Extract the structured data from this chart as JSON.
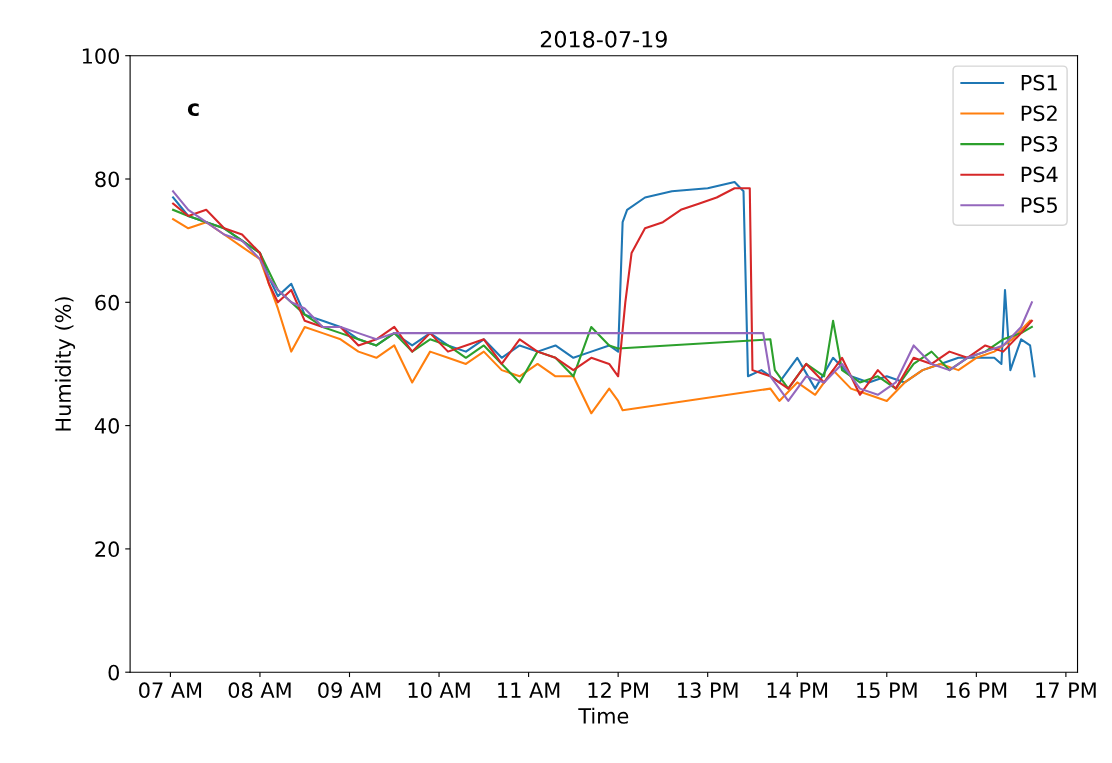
{
  "chart_data": {
    "type": "line",
    "title": "2018-07-19",
    "xlabel": "Time",
    "ylabel": "Humidity (%)",
    "annotations": [
      "c"
    ],
    "xlim": [
      6.55,
      17.13
    ],
    "ylim": [
      0,
      100
    ],
    "xticks": [
      {
        "value": 7,
        "label": "07 AM"
      },
      {
        "value": 8,
        "label": "08 AM"
      },
      {
        "value": 9,
        "label": "09 AM"
      },
      {
        "value": 10,
        "label": "10 AM"
      },
      {
        "value": 11,
        "label": "11 AM"
      },
      {
        "value": 12,
        "label": "12 PM"
      },
      {
        "value": 13,
        "label": "13 PM"
      },
      {
        "value": 14,
        "label": "14 PM"
      },
      {
        "value": 15,
        "label": "15 PM"
      },
      {
        "value": 16,
        "label": "16 PM"
      },
      {
        "value": 17,
        "label": "17 PM"
      }
    ],
    "yticks": [
      0,
      20,
      40,
      60,
      80,
      100
    ],
    "grid": false,
    "legend": "top right",
    "series": [
      {
        "name": "PS1",
        "color": "#1f77b4",
        "x": [
          7.03,
          7.2,
          7.4,
          7.6,
          7.8,
          8.0,
          8.1,
          8.2,
          8.35,
          8.5,
          8.7,
          8.9,
          9.1,
          9.3,
          9.5,
          9.7,
          9.9,
          10.1,
          10.3,
          10.5,
          10.7,
          10.9,
          11.1,
          11.3,
          11.5,
          11.7,
          11.9,
          12.0,
          12.05,
          12.1,
          12.3,
          12.6,
          13.0,
          13.3,
          13.4,
          13.45,
          13.6,
          13.8,
          14.0,
          14.2,
          14.4,
          14.6,
          14.8,
          15.0,
          15.2,
          15.4,
          15.6,
          15.8,
          16.0,
          16.2,
          16.28,
          16.32,
          16.38,
          16.5,
          16.6,
          16.65
        ],
        "values": [
          77,
          74,
          73,
          72,
          70,
          68,
          64,
          61,
          63,
          58,
          57,
          56,
          54,
          53,
          55,
          53,
          55,
          53,
          52,
          54,
          51,
          53,
          52,
          53,
          51,
          52,
          53,
          52,
          73,
          75,
          77,
          78,
          78.5,
          79.5,
          78,
          48,
          49,
          47,
          51,
          46,
          51,
          48,
          47,
          48,
          47,
          49,
          50,
          51,
          51,
          51,
          50,
          62,
          49,
          54,
          53,
          48
        ]
      },
      {
        "name": "PS2",
        "color": "#ff7f0e",
        "x": [
          7.03,
          7.2,
          7.4,
          7.6,
          7.8,
          8.0,
          8.1,
          8.2,
          8.35,
          8.5,
          8.7,
          8.9,
          9.1,
          9.3,
          9.5,
          9.7,
          9.9,
          10.1,
          10.3,
          10.5,
          10.7,
          10.9,
          11.1,
          11.3,
          11.5,
          11.7,
          11.9,
          12.0,
          12.05,
          13.7,
          13.8,
          14.0,
          14.2,
          14.4,
          14.6,
          14.8,
          15.0,
          15.2,
          15.4,
          15.6,
          15.8,
          16.0,
          16.2,
          16.4,
          16.6
        ],
        "values": [
          73.5,
          72,
          73,
          71,
          69,
          67,
          63,
          59,
          52,
          56,
          55,
          54,
          52,
          51,
          53,
          47,
          52,
          51,
          50,
          52,
          49,
          48,
          50,
          48,
          48,
          42,
          46,
          44,
          42.5,
          46,
          44,
          47,
          45,
          49,
          46,
          45,
          44,
          47,
          49,
          50,
          49,
          51,
          52,
          54,
          57
        ]
      },
      {
        "name": "PS3",
        "color": "#2ca02c",
        "x": [
          7.03,
          7.2,
          7.4,
          7.6,
          7.8,
          8.0,
          8.1,
          8.2,
          8.35,
          8.5,
          8.7,
          8.9,
          9.1,
          9.3,
          9.5,
          9.7,
          9.9,
          10.1,
          10.3,
          10.5,
          10.7,
          10.9,
          11.1,
          11.3,
          11.5,
          11.7,
          11.9,
          12.0,
          13.7,
          13.75,
          13.9,
          14.1,
          14.3,
          14.4,
          14.5,
          14.7,
          14.9,
          15.1,
          15.3,
          15.5,
          15.7,
          15.9,
          16.1,
          16.3,
          16.5,
          16.62
        ],
        "values": [
          75,
          74,
          73,
          72,
          70,
          68,
          65,
          62,
          60,
          58,
          56,
          55,
          54,
          53,
          55,
          52,
          54,
          53,
          51,
          53,
          50,
          47,
          52,
          51,
          48,
          56,
          53,
          52.5,
          54,
          49,
          46,
          50,
          48,
          57,
          49,
          47,
          48,
          46,
          50,
          52,
          49,
          51,
          52,
          54,
          55,
          56
        ]
      },
      {
        "name": "PS4",
        "color": "#d62728",
        "x": [
          7.03,
          7.2,
          7.4,
          7.6,
          7.8,
          8.0,
          8.1,
          8.2,
          8.35,
          8.5,
          8.7,
          8.9,
          9.1,
          9.3,
          9.5,
          9.7,
          9.9,
          10.1,
          10.3,
          10.5,
          10.7,
          10.9,
          11.1,
          11.3,
          11.5,
          11.7,
          11.9,
          12.0,
          12.08,
          12.15,
          12.3,
          12.5,
          12.7,
          12.9,
          13.1,
          13.3,
          13.47,
          13.5,
          13.7,
          13.9,
          14.1,
          14.3,
          14.5,
          14.7,
          14.9,
          15.1,
          15.3,
          15.5,
          15.7,
          15.9,
          16.1,
          16.3,
          16.5,
          16.62
        ],
        "values": [
          76,
          74,
          75,
          72,
          71,
          68,
          63,
          60,
          62,
          57,
          56,
          56,
          53,
          54,
          56,
          52,
          55,
          52,
          53,
          54,
          50,
          54,
          52,
          51,
          49,
          51,
          50,
          48,
          60,
          68,
          72,
          73,
          75,
          76,
          77,
          78.5,
          78.5,
          49,
          48,
          46,
          50,
          47,
          51,
          45,
          49,
          46,
          51,
          50,
          52,
          51,
          53,
          52,
          55,
          57
        ]
      },
      {
        "name": "PS5",
        "color": "#9467bd",
        "x": [
          7.03,
          7.2,
          7.4,
          7.6,
          7.8,
          8.0,
          8.1,
          8.2,
          8.35,
          8.5,
          8.7,
          8.9,
          9.1,
          9.3,
          9.5,
          9.6,
          13.62,
          13.7,
          13.9,
          14.1,
          14.3,
          14.5,
          14.7,
          14.9,
          15.1,
          15.3,
          15.5,
          15.7,
          15.9,
          16.1,
          16.3,
          16.5,
          16.62
        ],
        "values": [
          78,
          75,
          73,
          71,
          70,
          67,
          64,
          62,
          60,
          59,
          56,
          56,
          55,
          54,
          55,
          55,
          55,
          48,
          44,
          48,
          47,
          50,
          46,
          45,
          47,
          53,
          50,
          49,
          51,
          52,
          53,
          56,
          60
        ]
      }
    ]
  }
}
